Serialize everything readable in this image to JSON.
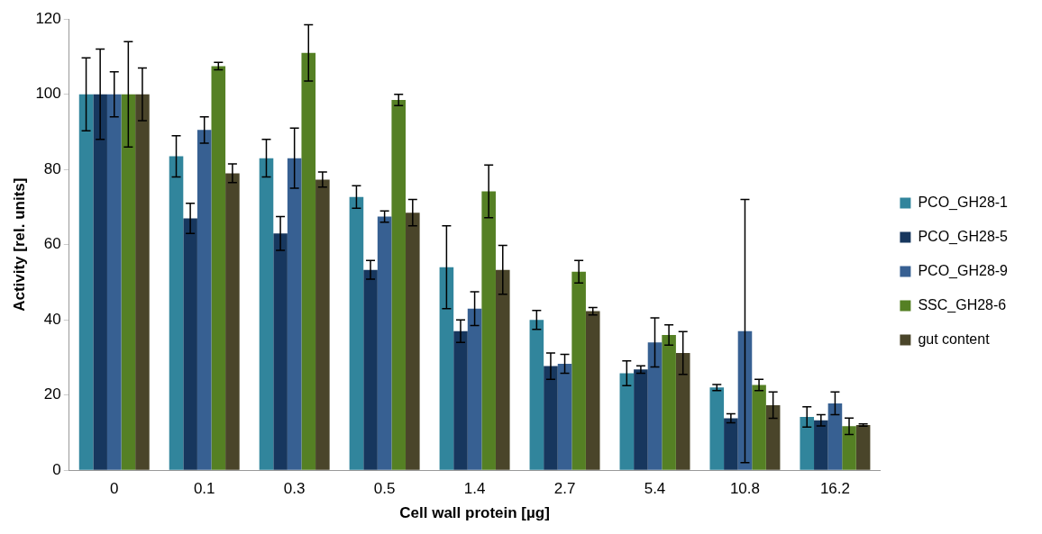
{
  "chart_data": {
    "type": "bar",
    "xlabel": "Cell wall protein [µg]",
    "ylabel": "Activity [rel. units]",
    "categories": [
      "0",
      "0.1",
      "0.3",
      "0.5",
      "1.4",
      "2.7",
      "5.4",
      "10.8",
      "16.2"
    ],
    "ylim": [
      0,
      120
    ],
    "yticks": [
      0,
      20,
      40,
      60,
      80,
      100,
      120
    ],
    "grid": false,
    "legend": "right",
    "series": [
      {
        "name": "PCO_GH28-1",
        "color": "#31859c",
        "values": [
          100,
          83.5,
          83,
          72.7,
          54,
          40,
          25.8,
          22,
          14.2
        ],
        "errors": [
          9.7,
          5.5,
          5,
          3,
          11,
          2.5,
          3.3,
          0.8,
          2.7
        ]
      },
      {
        "name": "PCO_GH28-5",
        "color": "#17375e",
        "values": [
          100,
          67,
          63,
          53.3,
          37,
          27.7,
          26.8,
          13.8,
          13.3
        ],
        "errors": [
          12,
          4,
          4.5,
          2.5,
          3,
          3.5,
          1,
          1.2,
          1.5
        ]
      },
      {
        "name": "PCO_GH28-9",
        "color": "#376092",
        "values": [
          100,
          90.5,
          83,
          67.5,
          43,
          28.3,
          34,
          37,
          17.8
        ],
        "errors": [
          6,
          3.5,
          8,
          1.5,
          4.5,
          2.5,
          6.5,
          35,
          3
        ]
      },
      {
        "name": "SSC_GH28-6",
        "color": "#558024",
        "values": [
          100,
          107.5,
          111,
          98.5,
          74.2,
          52.8,
          36,
          22.7,
          11.7
        ],
        "errors": [
          14,
          1,
          7.5,
          1.5,
          7,
          3,
          2.7,
          1.5,
          2.2
        ]
      },
      {
        "name": "gut content",
        "color": "#4a452a",
        "values": [
          100,
          79,
          77.3,
          68.5,
          53.3,
          42.3,
          31.2,
          17.3,
          12
        ],
        "errors": [
          7,
          2.5,
          2,
          3.5,
          6.5,
          1,
          5.7,
          3.5,
          0.3
        ]
      }
    ]
  }
}
